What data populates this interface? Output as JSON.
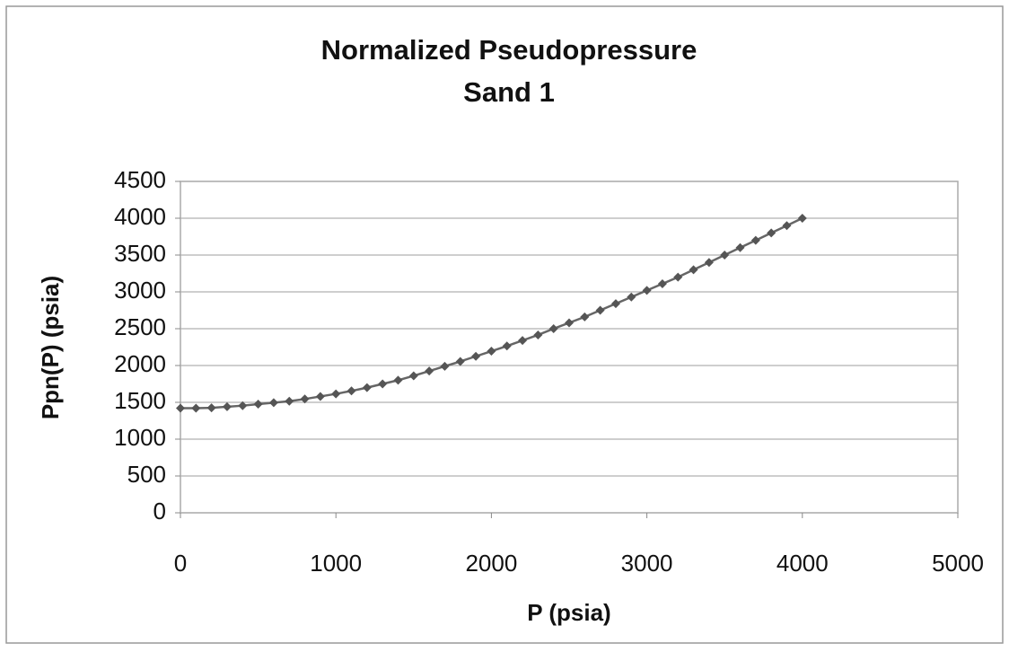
{
  "chart_data": {
    "type": "line",
    "title": "Normalized Pseudopressure",
    "subtitle": "Sand 1",
    "xlabel": "P (psia)",
    "ylabel": "Ppn(P) (psia)",
    "x": [
      0,
      100,
      200,
      300,
      400,
      500,
      600,
      700,
      800,
      900,
      1000,
      1100,
      1200,
      1300,
      1400,
      1500,
      1600,
      1700,
      1800,
      1900,
      2000,
      2100,
      2200,
      2300,
      2400,
      2500,
      2600,
      2700,
      2800,
      2900,
      3000,
      3100,
      3200,
      3300,
      3400,
      3500,
      3600,
      3700,
      3800,
      3900,
      4000
    ],
    "values": [
      1420,
      1420,
      1425,
      1440,
      1455,
      1475,
      1495,
      1515,
      1545,
      1580,
      1615,
      1655,
      1700,
      1750,
      1800,
      1860,
      1925,
      1990,
      2055,
      2125,
      2195,
      2265,
      2340,
      2415,
      2500,
      2580,
      2660,
      2750,
      2840,
      2930,
      3020,
      3110,
      3200,
      3300,
      3400,
      3500,
      3600,
      3700,
      3800,
      3900,
      4000
    ],
    "color": "#555555",
    "xlim": [
      0,
      5000
    ],
    "xticks": [
      0,
      1000,
      2000,
      3000,
      4000,
      5000
    ],
    "ylim": [
      0,
      4500
    ],
    "yticks": [
      0,
      500,
      1000,
      1500,
      2000,
      2500,
      3000,
      3500,
      4000,
      4500
    ],
    "grid": true
  }
}
